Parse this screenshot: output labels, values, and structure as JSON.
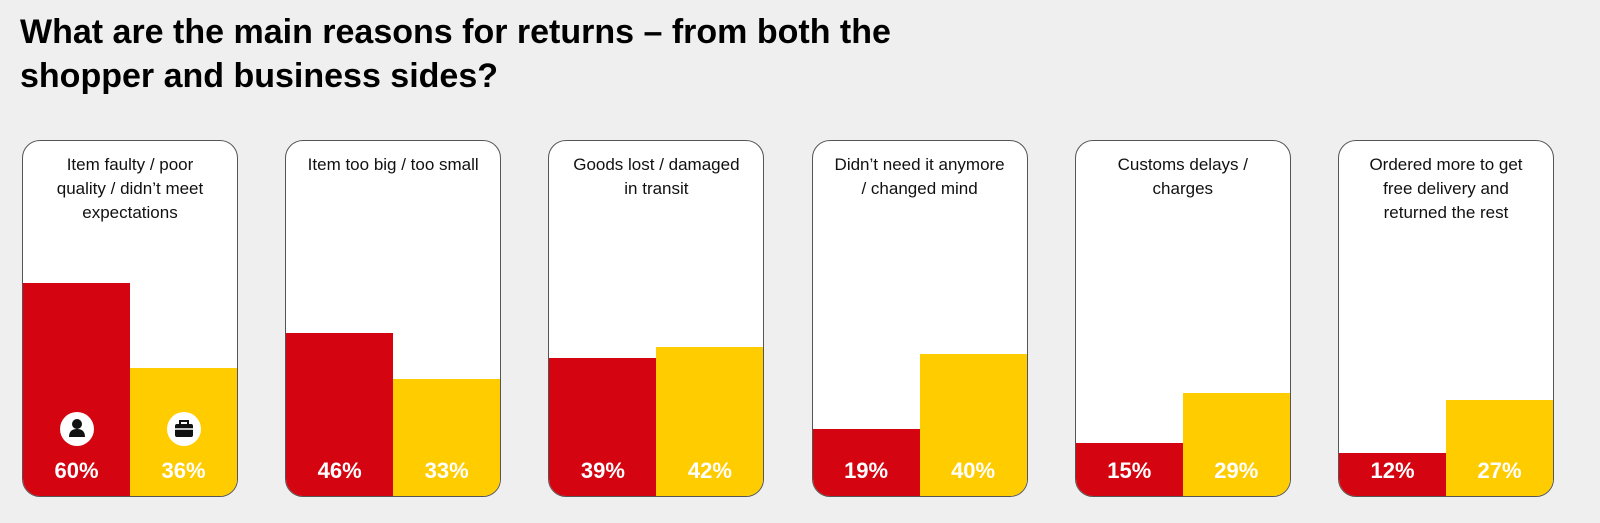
{
  "chart_data": {
    "type": "bar",
    "title": "What are the main reasons for returns – from both the shopper and business sides?",
    "categories": [
      "Item faulty / poor quality / didn’t meet expectations",
      "Item too big / too small",
      "Goods lost / damaged in transit",
      "Didn’t need it anymore / changed mind",
      "Customs delays / charges",
      "Ordered more to get free delivery and returned the rest"
    ],
    "series": [
      {
        "color": "#d40511",
        "values": [
          60,
          46,
          39,
          19,
          15,
          12
        ],
        "value_labels": [
          "60%",
          "46%",
          "39%",
          "19%",
          "15%",
          "12%"
        ]
      },
      {
        "color": "#ffcc00",
        "values": [
          36,
          33,
          42,
          40,
          29,
          27
        ],
        "value_labels": [
          "36%",
          "33%",
          "42%",
          "40%",
          "29%",
          "27%"
        ]
      }
    ],
    "ylim": [
      0,
      100
    ]
  }
}
